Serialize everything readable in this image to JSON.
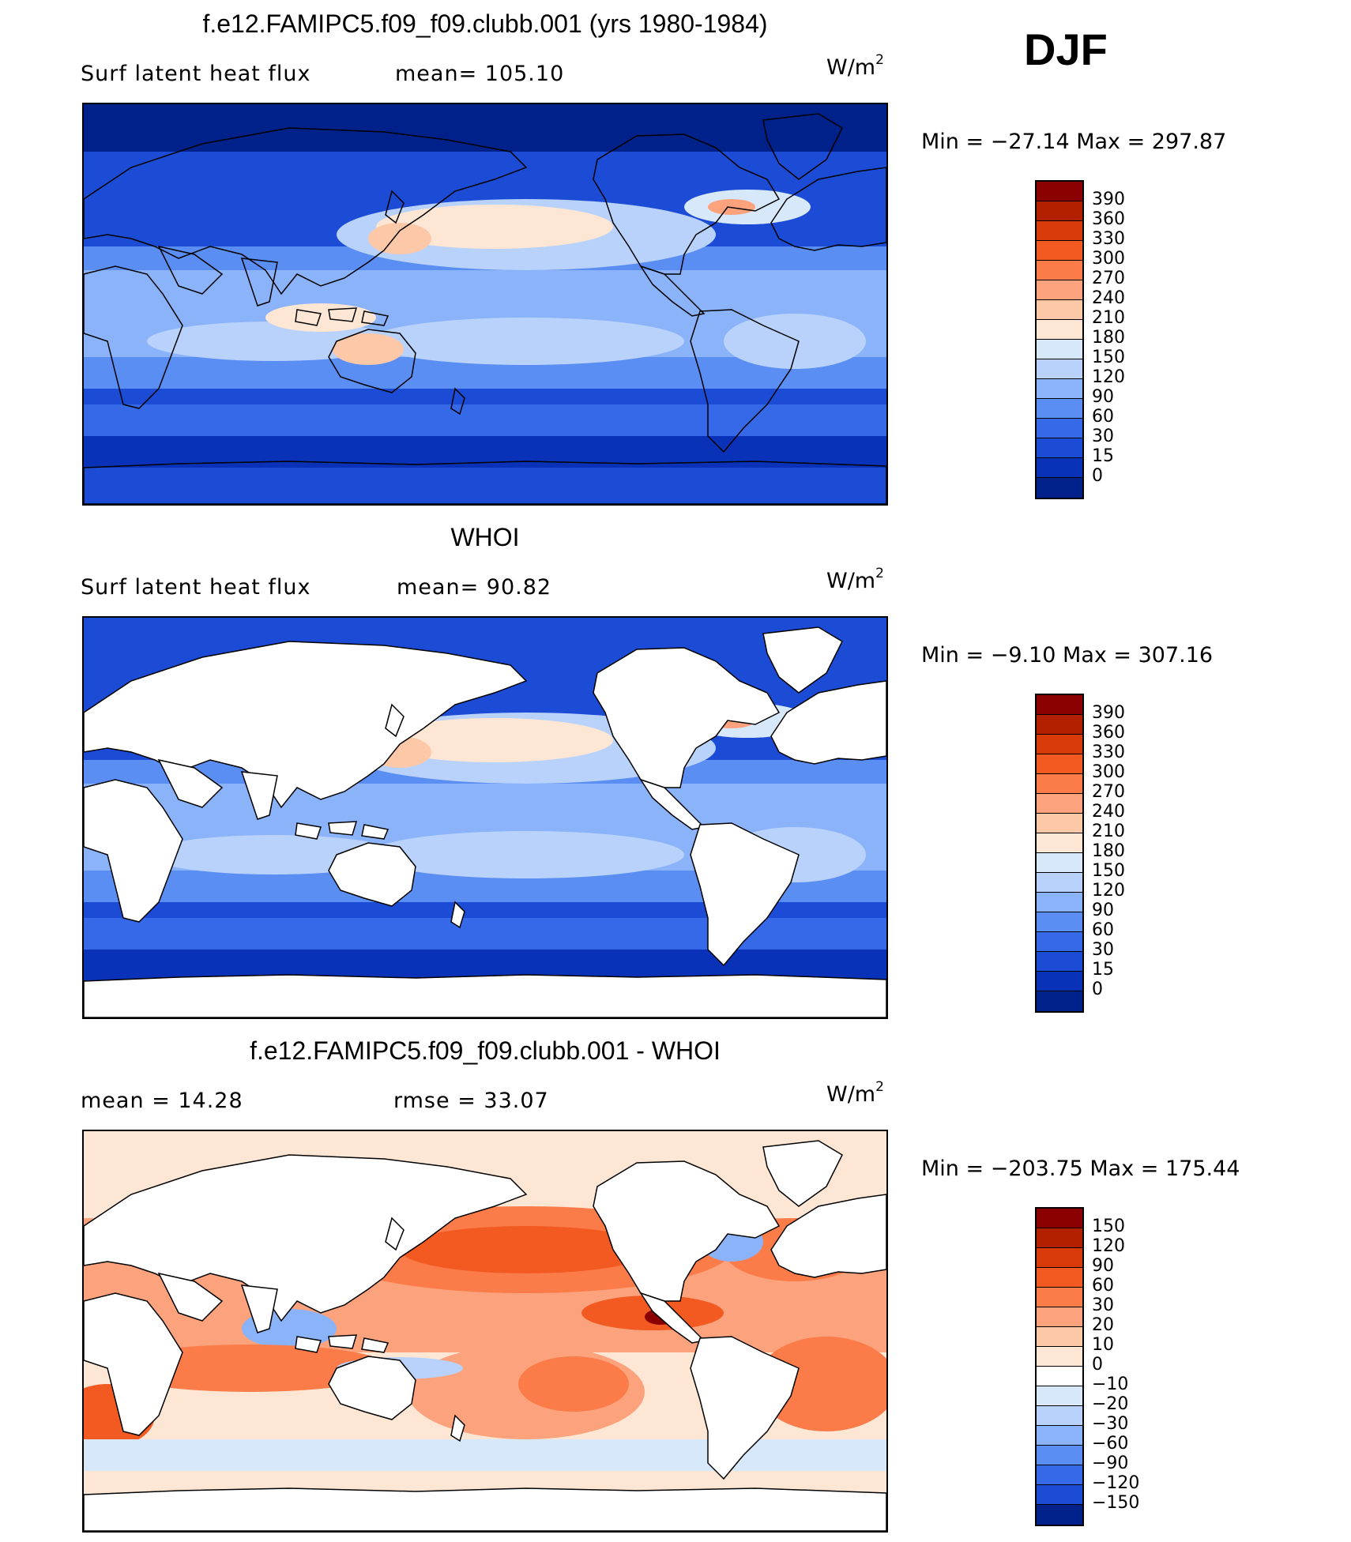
{
  "season": "DJF",
  "panels": [
    {
      "title": "f.e12.FAMIPC5.f09_f09.clubb.001 (yrs 1980-1984)",
      "left_text": "Surf  latent  heat  flux",
      "mid_text": "mean=  105.10",
      "unit": "W/m",
      "unit_exp": "2",
      "minmax": "Min  =  −27.14  Max  =  297.87",
      "ticks": [
        "390",
        "360",
        "330",
        "300",
        "270",
        "240",
        "210",
        "180",
        "150",
        "120",
        "90",
        "60",
        "30",
        "15",
        "0"
      ],
      "colors": [
        "#8b0000",
        "#b22000",
        "#d83a0a",
        "#f25a22",
        "#fb7c48",
        "#fca27c",
        "#fcc8a8",
        "#fde6d4",
        "#d8e8fb",
        "#b8d2fb",
        "#8bb3f9",
        "#5b8ef3",
        "#3569e8",
        "#1c4cd6",
        "#0a32b8",
        "#00218a"
      ],
      "fill": "full"
    },
    {
      "title": "WHOI",
      "left_text": "Surf  latent  heat  flux",
      "mid_text": "mean=   90.82",
      "unit": "W/m",
      "unit_exp": "2",
      "minmax": "Min  =   −9.10  Max  =  307.16",
      "ticks": [
        "390",
        "360",
        "330",
        "300",
        "270",
        "240",
        "210",
        "180",
        "150",
        "120",
        "90",
        "60",
        "30",
        "15",
        "0"
      ],
      "colors": [
        "#8b0000",
        "#b22000",
        "#d83a0a",
        "#f25a22",
        "#fb7c48",
        "#fca27c",
        "#fcc8a8",
        "#fde6d4",
        "#d8e8fb",
        "#b8d2fb",
        "#8bb3f9",
        "#5b8ef3",
        "#3569e8",
        "#1c4cd6",
        "#0a32b8",
        "#00218a"
      ],
      "fill": "ocean"
    },
    {
      "title": "f.e12.FAMIPC5.f09_f09.clubb.001 - WHOI",
      "left_text": "mean  =    14.28",
      "mid_text": "rmse  =    33.07",
      "unit": "W/m",
      "unit_exp": "2",
      "minmax": "Min  =  −203.75  Max  =  175.44",
      "ticks": [
        "150",
        "120",
        "90",
        "60",
        "30",
        "20",
        "10",
        "0",
        "−10",
        "−20",
        "−30",
        "−60",
        "−90",
        "−120",
        "−150"
      ],
      "colors": [
        "#8b0000",
        "#b22000",
        "#d83a0a",
        "#f25a22",
        "#fb7c48",
        "#fca27c",
        "#fcc8a8",
        "#fde6d4",
        "#ffffff",
        "#d8e8fb",
        "#b8d2fb",
        "#8bb3f9",
        "#5b8ef3",
        "#3569e8",
        "#1c4cd6",
        "#00218a"
      ],
      "fill": "diff"
    }
  ]
}
